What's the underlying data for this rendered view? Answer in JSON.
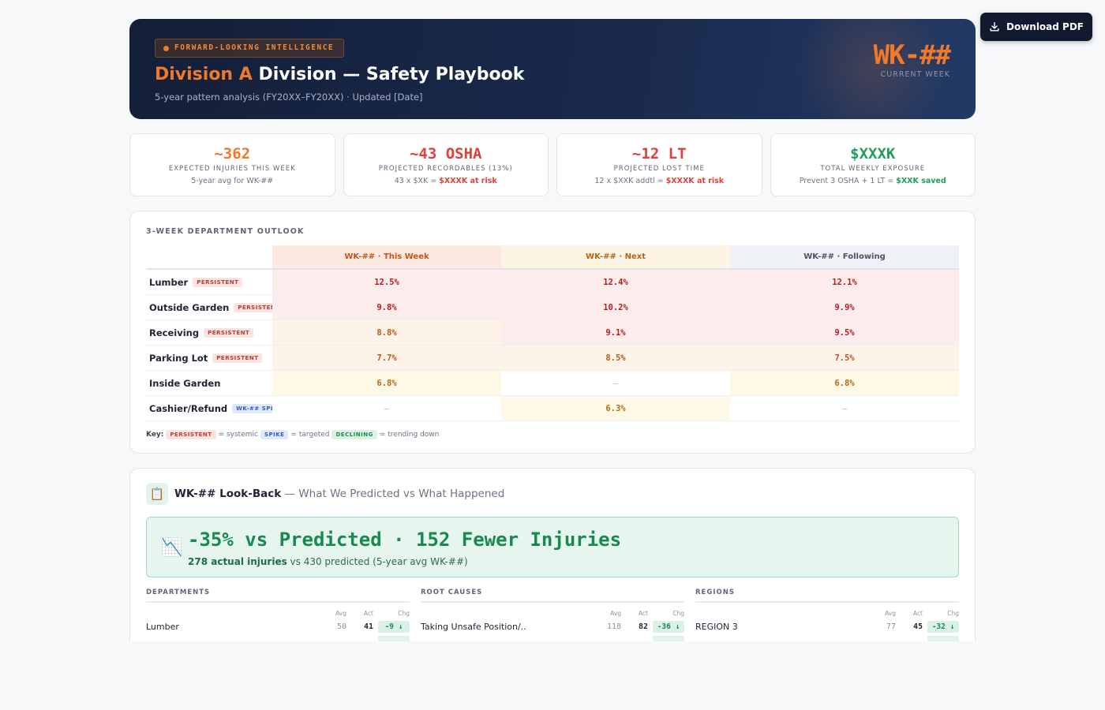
{
  "download": {
    "label": "Download PDF"
  },
  "hero": {
    "tag": "FORWARD-LOOKING INTELLIGENCE",
    "title_accent": "Division A",
    "title_rest": "Division — Safety Playbook",
    "subtitle": "5-year pattern analysis (FY20XX–FY20XX) · Updated [Date]",
    "week": "WK-##",
    "week_label": "CURRENT WEEK"
  },
  "kpis": [
    {
      "value": "~362",
      "label": "EXPECTED INJURIES THIS WEEK",
      "sub_pre": "5-year avg for WK-##",
      "sub_em": "",
      "color": "#f07a2a"
    },
    {
      "value": "~43 OSHA",
      "label": "PROJECTED RECORDABLES (13%)",
      "sub_pre": "43 x $XK = ",
      "sub_em": "$XXXK at risk",
      "color": "#e0403a"
    },
    {
      "value": "~12 LT",
      "label": "PROJECTED LOST TIME",
      "sub_pre": "12 x $XXK addtl = ",
      "sub_em": "$XXXK at risk",
      "color": "#e0403a"
    },
    {
      "value": "$XXXK",
      "label": "TOTAL WEEKLY EXPOSURE",
      "sub_pre": "Prevent 3 OSHA + 1 LT = ",
      "sub_em": "$XXK saved",
      "color": "#1f9d5c"
    }
  ],
  "outlook": {
    "title": "3-WEEK DEPARTMENT OUTLOOK",
    "headers": [
      "WK-## · This Week",
      "WK-## · Next",
      "WK-## · Following"
    ],
    "rows": [
      {
        "dept": "Lumber",
        "badge": "PERSISTENT",
        "badge_type": "persist",
        "cells": [
          "12.5%",
          "12.4%",
          "12.1%"
        ],
        "levels": [
          "hot",
          "hot",
          "hot"
        ]
      },
      {
        "dept": "Outside Garden",
        "badge": "PERSISTENT",
        "badge_type": "persist",
        "cells": [
          "9.8%",
          "10.2%",
          "9.9%"
        ],
        "levels": [
          "hot",
          "hot",
          "hot"
        ]
      },
      {
        "dept": "Receiving",
        "badge": "PERSISTENT",
        "badge_type": "persist",
        "cells": [
          "8.8%",
          "9.1%",
          "9.5%"
        ],
        "levels": [
          "warm",
          "hot",
          "hot"
        ]
      },
      {
        "dept": "Parking Lot",
        "badge": "PERSISTENT",
        "badge_type": "persist",
        "cells": [
          "7.7%",
          "8.5%",
          "7.5%"
        ],
        "levels": [
          "warm",
          "warm",
          "warm"
        ]
      },
      {
        "dept": "Inside Garden",
        "badge": "",
        "badge_type": "",
        "cells": [
          "6.8%",
          "—",
          "6.8%"
        ],
        "levels": [
          "mild",
          "empty",
          "mild"
        ]
      },
      {
        "dept": "Cashier/Refund",
        "badge": "WK-## SPIKE",
        "badge_type": "spike",
        "cells": [
          "—",
          "6.3%",
          "—"
        ],
        "levels": [
          "empty",
          "mild",
          "empty"
        ]
      }
    ],
    "key": {
      "label": "Key:",
      "persistent": "PERSISTENT",
      "persistent_desc": "= systemic",
      "spike": "SPIKE",
      "spike_desc": "= targeted",
      "declining": "DECLINING",
      "declining_desc": "= trending down"
    }
  },
  "lookback": {
    "icon": "📋",
    "title_bold": "WK-## Look-Back",
    "title_rest": " — What We Predicted vs What Happened",
    "banner_icon": "📉",
    "banner_head": "-35% vs Predicted · 152 Fewer Injuries",
    "banner_sub_bold": "278 actual injuries",
    "banner_sub_rest": " vs 430 predicted (5-year avg WK-##)",
    "col_headers": {
      "avg": "Avg",
      "act": "Act",
      "chg": "Chg"
    },
    "columns": [
      {
        "title": "DEPARTMENTS",
        "rows": [
          {
            "name": "Lumber",
            "avg": "50",
            "act": "41",
            "chg": "-9 ↓"
          }
        ]
      },
      {
        "title": "ROOT CAUSES",
        "rows": [
          {
            "name": "Taking Unsafe Position/..",
            "avg": "118",
            "act": "82",
            "chg": "-36 ↓"
          }
        ]
      },
      {
        "title": "REGIONS",
        "rows": [
          {
            "name": "REGION 3",
            "avg": "77",
            "act": "45",
            "chg": "-32 ↓"
          }
        ]
      }
    ]
  }
}
